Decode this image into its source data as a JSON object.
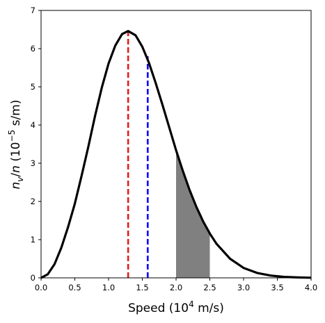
{
  "chart_data": {
    "type": "line",
    "xlabel": "Speed (10^4 m/s)",
    "ylabel": "n_v/n (10^-5 s/m)",
    "xlim": [
      0,
      4
    ],
    "ylim": [
      0,
      7
    ],
    "xticks": [
      "0.0",
      "0.5",
      "1.0",
      "1.5",
      "2.0",
      "2.5",
      "3.0",
      "3.5",
      "4.0"
    ],
    "yticks": [
      "0",
      "1",
      "2",
      "3",
      "4",
      "5",
      "6",
      "7"
    ],
    "grid": false,
    "series": [
      {
        "color": "#000000",
        "x": [
          0,
          0.1,
          0.2,
          0.3,
          0.4,
          0.5,
          0.6,
          0.7,
          0.8,
          0.9,
          1.0,
          1.1,
          1.2,
          1.29,
          1.4,
          1.5,
          1.6,
          1.7,
          1.8,
          1.9,
          2.0,
          2.1,
          2.2,
          2.3,
          2.4,
          2.5,
          2.6,
          2.8,
          3.0,
          3.2,
          3.4,
          3.6,
          3.8,
          4.0
        ],
        "values": [
          0,
          0.094,
          0.36,
          0.79,
          1.33,
          1.94,
          2.67,
          3.43,
          4.24,
          4.98,
          5.61,
          6.08,
          6.38,
          6.46,
          6.35,
          6.05,
          5.62,
          5.09,
          4.52,
          3.93,
          3.34,
          2.8,
          2.3,
          1.86,
          1.48,
          1.16,
          0.89,
          0.5,
          0.26,
          0.13,
          0.06,
          0.025,
          0.01,
          0.004
        ]
      }
    ],
    "vlines": [
      {
        "x": 1.29,
        "y_top": 6.46,
        "color": "#e41a1c",
        "style": "dashed"
      },
      {
        "x": 1.58,
        "y_top": 5.8,
        "color": "#0000ff",
        "style": "dashed"
      }
    ],
    "shaded_region": {
      "x_from": 2.0,
      "x_to": 2.5,
      "color": "#808080"
    },
    "colors": {
      "curve": "#000000",
      "most_probable": "#e41a1c",
      "mean": "#0000ff",
      "shade": "#808080"
    }
  }
}
